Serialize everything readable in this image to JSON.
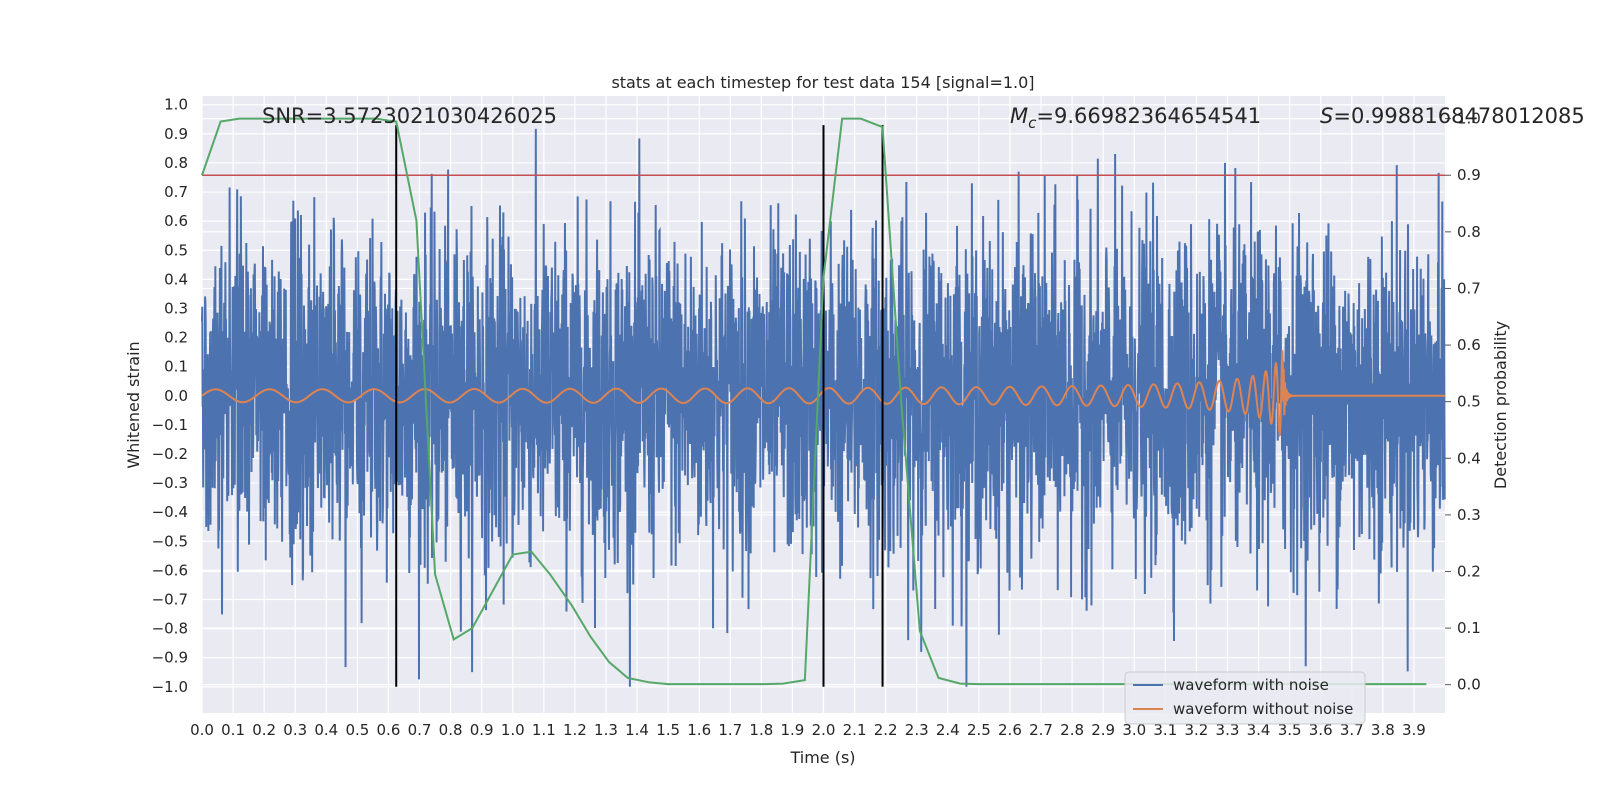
{
  "chart_data": {
    "type": "line",
    "title": "stats at each timestep for test data 154 [signal=1.0]",
    "xlabel": "Time (s)",
    "ylabel_left": "Whitened strain",
    "ylabel_right": "Detection probability",
    "xlim": [
      0.0,
      4.0
    ],
    "ylim_left": [
      -1.09,
      1.03
    ],
    "ylim_right": [
      -0.05,
      1.04
    ],
    "x_ticks": [
      "0.0",
      "0.1",
      "0.2",
      "0.3",
      "0.4",
      "0.5",
      "0.6",
      "0.7",
      "0.8",
      "0.9",
      "1.0",
      "1.1",
      "1.2",
      "1.3",
      "1.4",
      "1.5",
      "1.6",
      "1.7",
      "1.8",
      "1.9",
      "2.0",
      "2.1",
      "2.2",
      "2.3",
      "2.4",
      "2.5",
      "2.6",
      "2.7",
      "2.8",
      "2.9",
      "3.0",
      "3.1",
      "3.2",
      "3.3",
      "3.4",
      "3.5",
      "3.6",
      "3.7",
      "3.8",
      "3.9"
    ],
    "y_ticks_left": [
      "1.0",
      "0.9",
      "0.8",
      "0.7",
      "0.6",
      "0.5",
      "0.4",
      "0.3",
      "0.2",
      "0.1",
      "0.0",
      "-0.1",
      "-0.2",
      "-0.3",
      "-0.4",
      "-0.5",
      "-0.6",
      "-0.7",
      "-0.8",
      "-0.9",
      "-1.0"
    ],
    "y_ticks_right": [
      "1.0",
      "0.9",
      "0.8",
      "0.7",
      "0.6",
      "0.5",
      "0.4",
      "0.3",
      "0.2",
      "0.1",
      "0.0"
    ],
    "annotations": {
      "snr": "SNR=3.5723021030426025",
      "mc_symbol": "M",
      "mc_sub": "c",
      "mc_value": "=9.66982364654541",
      "s_symbol": "S",
      "s_value": "=0.9988168478012085"
    },
    "threshold": {
      "value": 0.9,
      "axis": "right",
      "color": "#c44e52"
    },
    "vertical_lines": [
      0.625,
      2.0,
      2.19
    ],
    "vertical_line_range": [
      -1.0,
      0.93
    ],
    "detection_probability": {
      "name": "detection probability",
      "color": "#55a868",
      "x": [
        0.0,
        0.06,
        0.12,
        0.19,
        0.25,
        0.31,
        0.37,
        0.44,
        0.5,
        0.56,
        0.62,
        0.625,
        0.69,
        0.75,
        0.81,
        0.87,
        0.94,
        1.0,
        1.06,
        1.12,
        1.19,
        1.25,
        1.31,
        1.37,
        1.44,
        1.5,
        1.56,
        1.62,
        1.69,
        1.75,
        1.81,
        1.87,
        1.94,
        2.0,
        2.06,
        2.12,
        2.19,
        2.25,
        2.31,
        2.37,
        2.44,
        2.5,
        2.56,
        2.62,
        2.69,
        2.75,
        2.81,
        2.87,
        2.94,
        3.0,
        3.06,
        3.12,
        3.19,
        3.25,
        3.31,
        3.37,
        3.44,
        3.5,
        3.56,
        3.62,
        3.69,
        3.75,
        3.81,
        3.87,
        3.94
      ],
      "values": [
        0.9,
        0.995,
        1.0,
        1.0,
        1.0,
        1.0,
        1.0,
        1.0,
        1.0,
        1.0,
        0.995,
        0.995,
        0.82,
        0.195,
        0.08,
        0.1,
        0.17,
        0.23,
        0.235,
        0.195,
        0.14,
        0.085,
        0.04,
        0.012,
        0.004,
        0.001,
        0.001,
        0.001,
        0.001,
        0.001,
        0.001,
        0.002,
        0.008,
        0.72,
        1.0,
        1.0,
        0.985,
        0.5,
        0.095,
        0.012,
        0.002,
        0.001,
        0.001,
        0.001,
        0.001,
        0.001,
        0.001,
        0.001,
        0.001,
        0.001,
        0.001,
        0.001,
        0.001,
        0.001,
        0.001,
        0.001,
        0.001,
        0.001,
        0.001,
        0.001,
        0.001,
        0.001,
        0.001,
        0.001,
        0.001
      ]
    },
    "series": [
      {
        "name": "waveform with noise",
        "color": "#4c72b0",
        "kind": "gaussian noise, sigma ≈ 0.28, range ≈ -1.0 to 0.93"
      },
      {
        "name": "waveform without noise",
        "color": "#dd8452",
        "kind": "chirp, amplitude 0.015 rising to 0.17, merger at t ≈ 3.48 s"
      }
    ],
    "legend": {
      "position": "bottom-right",
      "entries": [
        "waveform with noise",
        "waveform without noise"
      ]
    }
  }
}
